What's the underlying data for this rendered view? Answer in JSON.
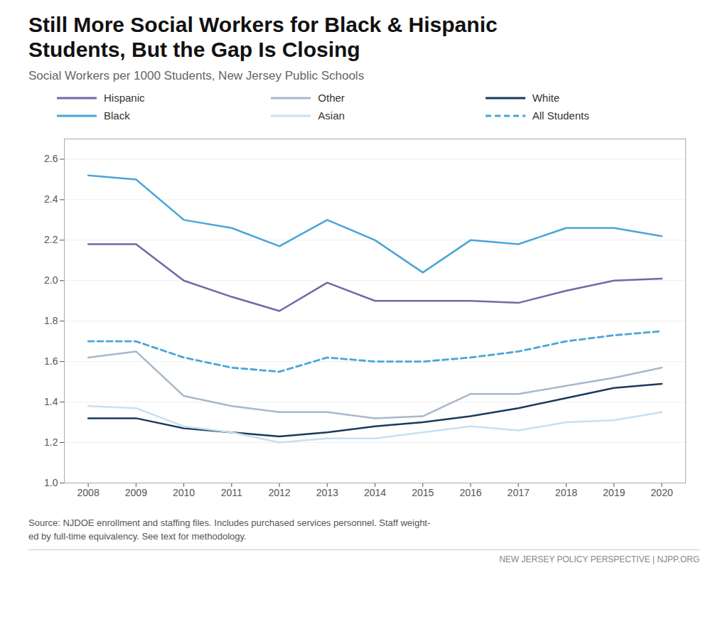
{
  "chart_data": {
    "type": "line",
    "title": "Still More Social Workers for Black & Hispanic\nStudents, But the Gap Is Closing",
    "subtitle": "Social Workers per 1000 Students, New Jersey Public Schools",
    "source": "Source: NJDOE enrollment and staffing files. Includes purchased services personnel. Staff weight-\ned by full-time equivalency. See text for methodology.",
    "footer": "NEW JERSEY POLICY PERSPECTIVE | NJPP.ORG",
    "x": [
      2008,
      2009,
      2010,
      2011,
      2012,
      2013,
      2014,
      2015,
      2016,
      2017,
      2018,
      2019,
      2020
    ],
    "series": [
      {
        "name": "Hispanic",
        "color": "#6b6baa",
        "line_style": "solid",
        "values": [
          2.18,
          2.18,
          2.0,
          1.92,
          1.85,
          1.99,
          1.9,
          1.9,
          1.9,
          1.89,
          1.95,
          2.0,
          2.01
        ]
      },
      {
        "name": "Other",
        "color": "#a8b8cc",
        "line_style": "solid",
        "values": [
          1.62,
          1.65,
          1.43,
          1.38,
          1.35,
          1.35,
          1.32,
          1.33,
          1.44,
          1.44,
          1.48,
          1.52,
          1.57
        ]
      },
      {
        "name": "White",
        "color": "#1a3a5c",
        "line_style": "solid",
        "values": [
          1.32,
          1.32,
          1.27,
          1.25,
          1.23,
          1.25,
          1.28,
          1.3,
          1.33,
          1.37,
          1.42,
          1.47,
          1.49
        ]
      },
      {
        "name": "Black",
        "color": "#4aa5d8",
        "line_style": "solid",
        "values": [
          2.52,
          2.5,
          2.3,
          2.26,
          2.17,
          2.3,
          2.2,
          2.04,
          2.2,
          2.18,
          2.26,
          2.26,
          2.22
        ]
      },
      {
        "name": "Asian",
        "color": "#c8e0f0",
        "line_style": "solid",
        "values": [
          1.38,
          1.37,
          1.28,
          1.25,
          1.2,
          1.22,
          1.22,
          1.25,
          1.28,
          1.26,
          1.3,
          1.31,
          1.35
        ]
      },
      {
        "name": "All Students",
        "color": "#4aa5d8",
        "line_style": "dashed",
        "values": [
          1.7,
          1.7,
          1.62,
          1.57,
          1.55,
          1.62,
          1.6,
          1.6,
          1.62,
          1.65,
          1.7,
          1.73,
          1.75
        ]
      }
    ],
    "xlim": [
      2007.5,
      2020.5
    ],
    "xticks": [
      2008,
      2009,
      2010,
      2011,
      2012,
      2013,
      2014,
      2015,
      2016,
      2017,
      2018,
      2019,
      2020
    ],
    "ylim": [
      1.0,
      2.7
    ],
    "yticks": [
      {
        "value": 1.0,
        "label": "1.0"
      },
      1.2,
      1.4,
      1.6,
      1.8,
      {
        "value": 2.0,
        "label": "2.0"
      },
      2.2,
      2.4,
      2.6
    ],
    "grid": "y",
    "legend": "top"
  }
}
